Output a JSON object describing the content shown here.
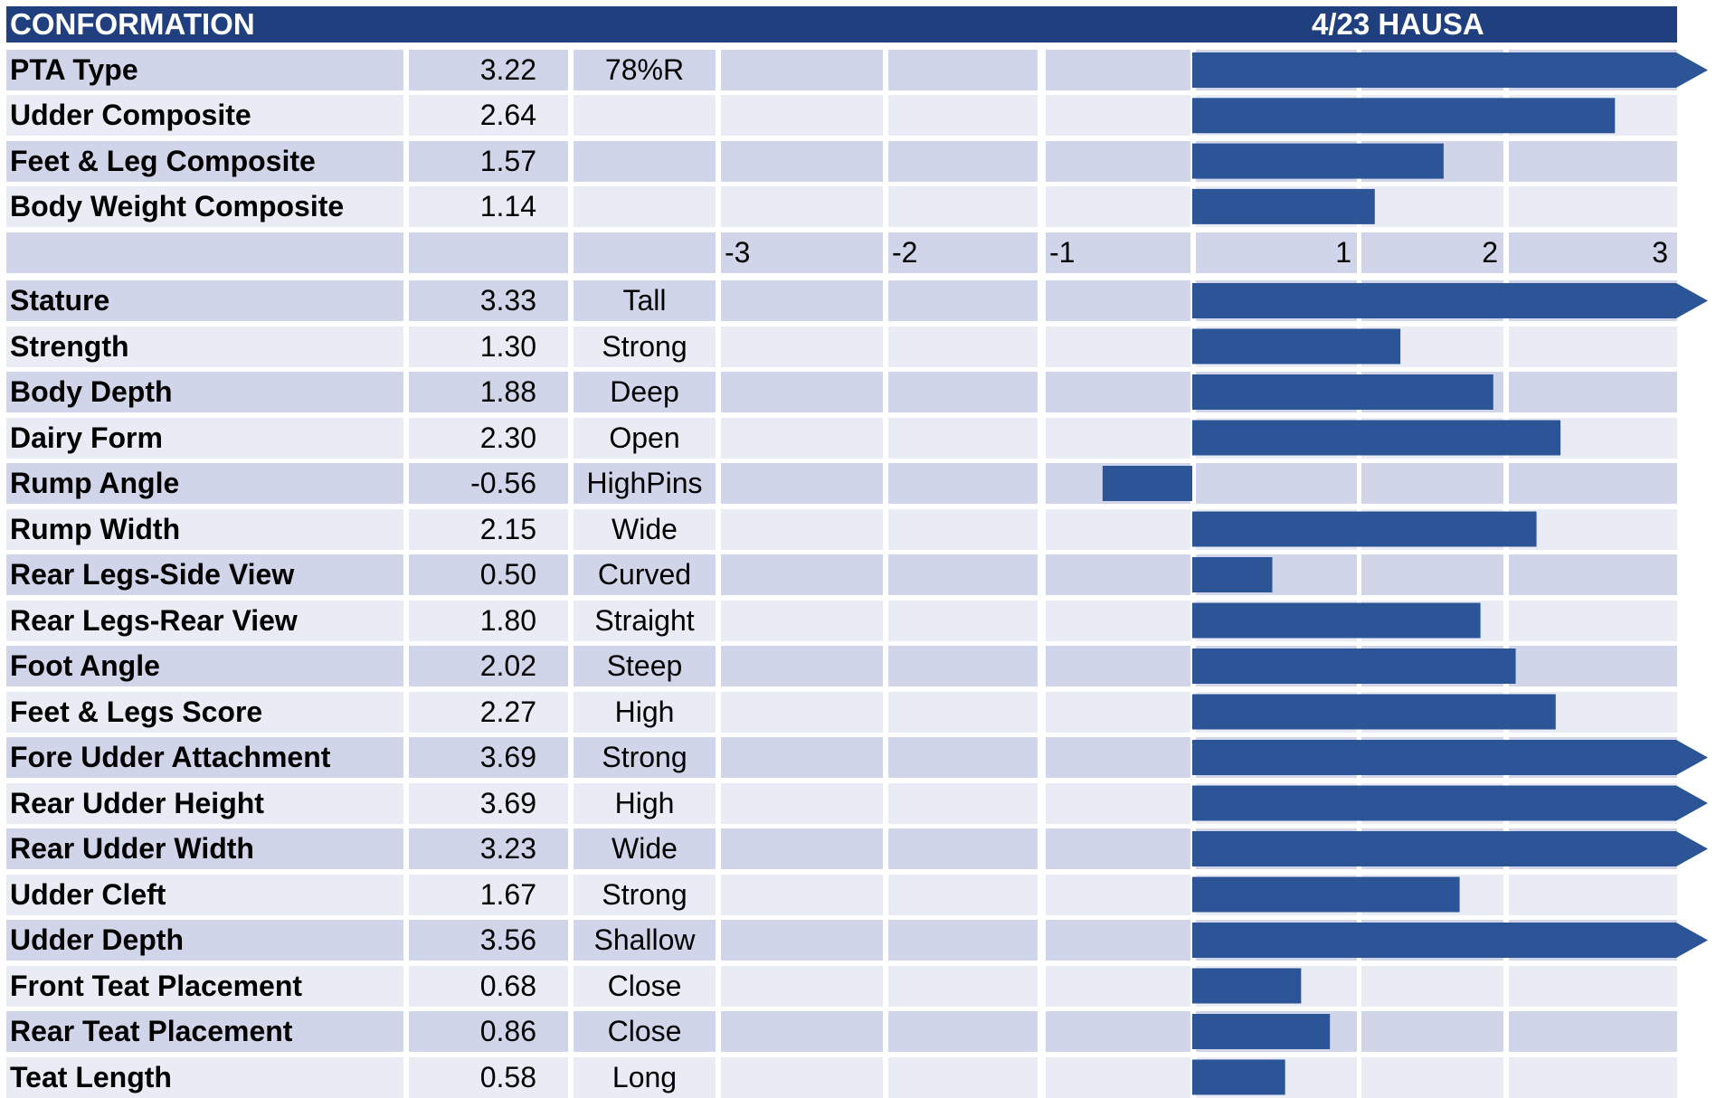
{
  "header": {
    "title": "CONFORMATION",
    "source": "4/23 HAUSA"
  },
  "colors": {
    "header": "#1f3f7e",
    "bar": "#2c5597",
    "row_dark": "#d0d5ea",
    "row_light": "#e9ebf5"
  },
  "chart_data": {
    "type": "bar",
    "orientation": "horizontal",
    "xlim": [
      -3,
      3
    ],
    "axis_ticks": [
      "-3",
      "-2",
      "-1",
      "1",
      "2",
      "3"
    ],
    "composites": [
      {
        "label": "PTA Type",
        "value_text": "3.22",
        "value": 3.22,
        "desc": "78%R"
      },
      {
        "label": "Udder Composite",
        "value_text": "2.64",
        "value": 2.64,
        "desc": ""
      },
      {
        "label": "Feet & Leg Composite",
        "value_text": "1.57",
        "value": 1.57,
        "desc": ""
      },
      {
        "label": "Body Weight Composite",
        "value_text": "1.14",
        "value": 1.14,
        "desc": ""
      }
    ],
    "traits": [
      {
        "label": "Stature",
        "value_text": "3.33",
        "value": 3.33,
        "desc": "Tall"
      },
      {
        "label": "Strength",
        "value_text": "1.30",
        "value": 1.3,
        "desc": "Strong"
      },
      {
        "label": "Body Depth",
        "value_text": "1.88",
        "value": 1.88,
        "desc": "Deep"
      },
      {
        "label": "Dairy Form",
        "value_text": "2.30",
        "value": 2.3,
        "desc": "Open"
      },
      {
        "label": "Rump Angle",
        "value_text": "-0.56",
        "value": -0.56,
        "desc": "HighPins"
      },
      {
        "label": "Rump Width",
        "value_text": "2.15",
        "value": 2.15,
        "desc": "Wide"
      },
      {
        "label": "Rear Legs-Side View",
        "value_text": "0.50",
        "value": 0.5,
        "desc": "Curved"
      },
      {
        "label": "Rear Legs-Rear View",
        "value_text": "1.80",
        "value": 1.8,
        "desc": "Straight"
      },
      {
        "label": "Foot Angle",
        "value_text": "2.02",
        "value": 2.02,
        "desc": "Steep"
      },
      {
        "label": "Feet & Legs Score",
        "value_text": "2.27",
        "value": 2.27,
        "desc": "High"
      },
      {
        "label": "Fore Udder Attachment",
        "value_text": "3.69",
        "value": 3.69,
        "desc": "Strong"
      },
      {
        "label": "Rear Udder Height",
        "value_text": "3.69",
        "value": 3.69,
        "desc": "High"
      },
      {
        "label": "Rear Udder Width",
        "value_text": "3.23",
        "value": 3.23,
        "desc": "Wide"
      },
      {
        "label": "Udder Cleft",
        "value_text": "1.67",
        "value": 1.67,
        "desc": "Strong"
      },
      {
        "label": "Udder Depth",
        "value_text": "3.56",
        "value": 3.56,
        "desc": "Shallow"
      },
      {
        "label": "Front Teat Placement",
        "value_text": "0.68",
        "value": 0.68,
        "desc": "Close"
      },
      {
        "label": "Rear Teat Placement",
        "value_text": "0.86",
        "value": 0.86,
        "desc": "Close"
      },
      {
        "label": "Teat Length",
        "value_text": "0.58",
        "value": 0.58,
        "desc": "Long"
      }
    ]
  }
}
